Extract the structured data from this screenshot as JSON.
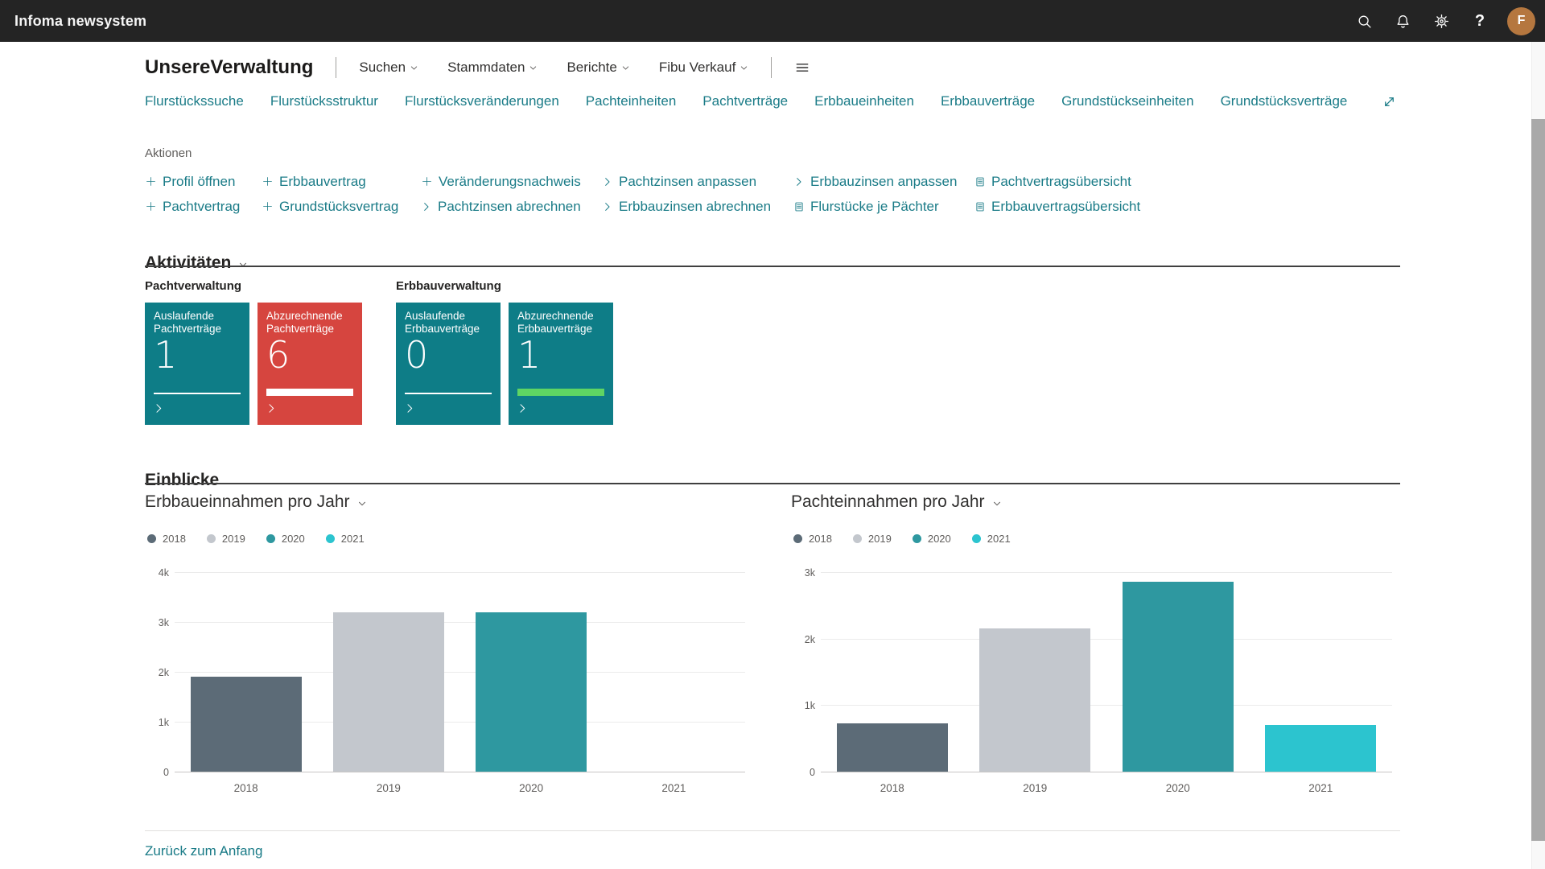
{
  "colors": {
    "accent": "#1a7b87",
    "topbar_bg": "#242424",
    "avatar_bg": "#b5773f",
    "tile_teal": "#0e7d87",
    "tile_red": "#d6453f",
    "tile_green_bar": "#5fd563"
  },
  "topbar": {
    "app_title": "Infoma newsystem",
    "icons": [
      "search",
      "notifications",
      "settings",
      "help"
    ],
    "avatar_initial": "F"
  },
  "nav": {
    "company": "UnsereVerwaltung",
    "menus": [
      {
        "label": "Suchen"
      },
      {
        "label": "Stammdaten"
      },
      {
        "label": "Berichte"
      },
      {
        "label": "Fibu Verkauf"
      }
    ],
    "links": [
      "Flurstückssuche",
      "Flurstücksstruktur",
      "Flurstücksveränderungen",
      "Pachteinheiten",
      "Pachtverträge",
      "Erbbaueinheiten",
      "Erbbauverträge",
      "Grundstückseinheiten",
      "Grundstücksverträge"
    ]
  },
  "actions": {
    "label": "Aktionen",
    "rows": [
      [
        {
          "icon": "plus",
          "label": "Profil öffnen"
        },
        {
          "icon": "plus",
          "label": "Erbbauvertrag"
        },
        {
          "icon": "plus",
          "label": "Veränderungsnachweis"
        },
        {
          "icon": "chevron",
          "label": "Pachtzinsen anpassen"
        },
        {
          "icon": "chevron",
          "label": "Erbbauzinsen anpassen"
        },
        {
          "icon": "report",
          "label": "Pachtvertragsübersicht"
        }
      ],
      [
        {
          "icon": "plus",
          "label": "Pachtvertrag"
        },
        {
          "icon": "plus",
          "label": "Grundstücksvertrag"
        },
        {
          "icon": "chevron",
          "label": "Pachtzinsen abrechnen"
        },
        {
          "icon": "chevron",
          "label": "Erbbauzinsen abrechnen"
        },
        {
          "icon": "report",
          "label": "Flurstücke je Pächter"
        },
        {
          "icon": "report",
          "label": "Erbbauvertragsübersicht"
        }
      ]
    ]
  },
  "activities": {
    "title": "Aktivitäten",
    "groups": [
      {
        "name": "Pachtverwaltung",
        "tiles": [
          {
            "label": "Auslaufende Pachtverträge",
            "value": "1",
            "bg": "#0e7d87",
            "bar": "thin",
            "bar_color": "#ffffff"
          },
          {
            "label": "Abzurechnende Pachtverträge",
            "value": "6",
            "bg": "#d6453f",
            "bar": "thick",
            "bar_color": "#ffffff"
          }
        ]
      },
      {
        "name": "Erbbauverwaltung",
        "tiles": [
          {
            "label": "Auslaufende Erbbauverträge",
            "value": "0",
            "bg": "#0e7d87",
            "bar": "thin",
            "bar_color": "#ffffff"
          },
          {
            "label": "Abzurechnende Erbbauverträge",
            "value": "1",
            "bg": "#0e7d87",
            "bar": "thick",
            "bar_color": "#5fd563"
          }
        ]
      }
    ]
  },
  "insights": {
    "title": "Einblicke",
    "back_link": "Zurück zum Anfang"
  },
  "chart_data": [
    {
      "type": "bar",
      "title": "Erbbaueinnahmen pro Jahr",
      "categories": [
        "2018",
        "2019",
        "2020",
        "2021"
      ],
      "values": [
        1900,
        3200,
        3200,
        0
      ],
      "colors": [
        "#5c6b77",
        "#c3c7cd",
        "#2e98a0",
        "#2cc4cf"
      ],
      "legend": [
        "2018",
        "2019",
        "2020",
        "2021"
      ],
      "legend_position": "top",
      "grid": true,
      "xlabel": "",
      "ylabel": "",
      "ylim": [
        0,
        4000
      ],
      "yticks": [
        {
          "value": 0,
          "label": "0"
        },
        {
          "value": 1000,
          "label": "1k"
        },
        {
          "value": 2000,
          "label": "2k"
        },
        {
          "value": 3000,
          "label": "3k"
        },
        {
          "value": 4000,
          "label": "4k"
        }
      ]
    },
    {
      "type": "bar",
      "title": "Pachteinnahmen pro Jahr",
      "categories": [
        "2018",
        "2019",
        "2020",
        "2021"
      ],
      "values": [
        730,
        2150,
        2850,
        700
      ],
      "colors": [
        "#5c6b77",
        "#c3c7cd",
        "#2e98a0",
        "#2cc4cf"
      ],
      "legend": [
        "2018",
        "2019",
        "2020",
        "2021"
      ],
      "legend_position": "top",
      "grid": true,
      "xlabel": "",
      "ylabel": "",
      "ylim": [
        0,
        3000
      ],
      "yticks": [
        {
          "value": 0,
          "label": "0"
        },
        {
          "value": 1000,
          "label": "1k"
        },
        {
          "value": 2000,
          "label": "2k"
        },
        {
          "value": 3000,
          "label": "3k"
        }
      ]
    }
  ]
}
